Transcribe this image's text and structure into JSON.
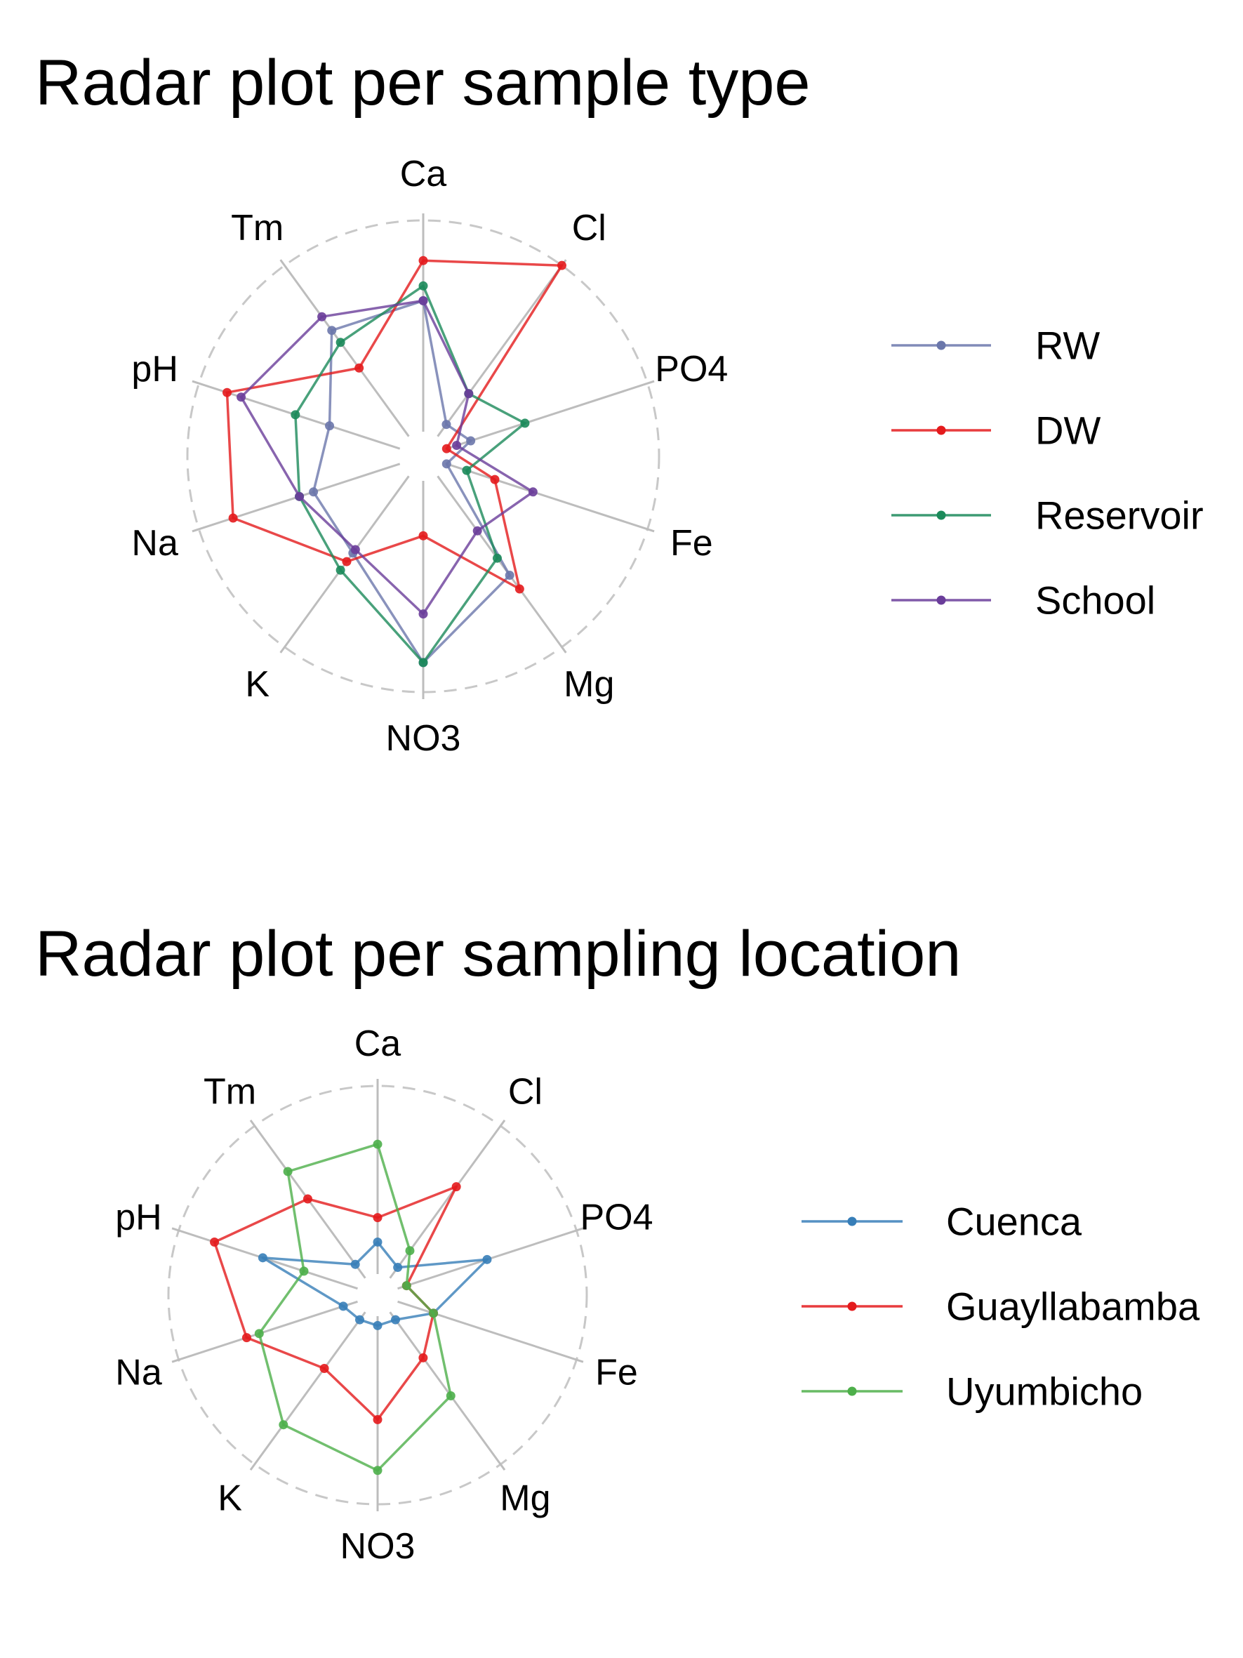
{
  "chart_data": [
    {
      "type": "radar",
      "title": "Radar plot per sample type",
      "axes": [
        "Ca",
        "Cl",
        "PO4",
        "Fe",
        "Mg",
        "NO3",
        "K",
        "Na",
        "pH",
        "Tm"
      ],
      "range": [
        0,
        1
      ],
      "grid": "dashed outer circle, gray spokes",
      "legend_position": "right",
      "series": [
        {
          "name": "RW",
          "color": "#6B77AB",
          "values": [
            0.62,
            0.07,
            0.12,
            0.0,
            0.58,
            0.86,
            0.45,
            0.43,
            0.35,
            0.62
          ]
        },
        {
          "name": "DW",
          "color": "#E41A1C",
          "values": [
            0.81,
            1.0,
            0.0,
            0.24,
            0.66,
            0.26,
            0.5,
            0.83,
            0.86,
            0.4
          ]
        },
        {
          "name": "Reservoir",
          "color": "#1B8A5A",
          "values": [
            0.69,
            0.25,
            0.39,
            0.1,
            0.48,
            0.86,
            0.55,
            0.5,
            0.52,
            0.55
          ]
        },
        {
          "name": "School",
          "color": "#6A3D9A",
          "values": [
            0.62,
            0.25,
            0.05,
            0.43,
            0.32,
            0.63,
            0.43,
            0.5,
            0.79,
            0.7
          ]
        }
      ]
    },
    {
      "type": "radar",
      "title": "Radar plot per sampling location",
      "axes": [
        "Ca",
        "Cl",
        "PO4",
        "Fe",
        "Mg",
        "NO3",
        "K",
        "Na",
        "pH",
        "Tm"
      ],
      "range": [
        0,
        1
      ],
      "grid": "dashed outer circle, gray spokes",
      "legend_position": "right",
      "series": [
        {
          "name": "Cuenca",
          "color": "#377EB8",
          "values": [
            0.17,
            0.07,
            0.5,
            0.2,
            0.05,
            0.05,
            0.05,
            0.08,
            0.53,
            0.09
          ]
        },
        {
          "name": "Guayllabamba",
          "color": "#E41A1C",
          "values": [
            0.3,
            0.6,
            0.05,
            0.2,
            0.3,
            0.55,
            0.37,
            0.62,
            0.8,
            0.52
          ]
        },
        {
          "name": "Uyumbicho",
          "color": "#4DAF4A",
          "values": [
            0.69,
            0.18,
            0.05,
            0.2,
            0.55,
            0.82,
            0.74,
            0.55,
            0.3,
            0.7
          ]
        }
      ]
    }
  ]
}
